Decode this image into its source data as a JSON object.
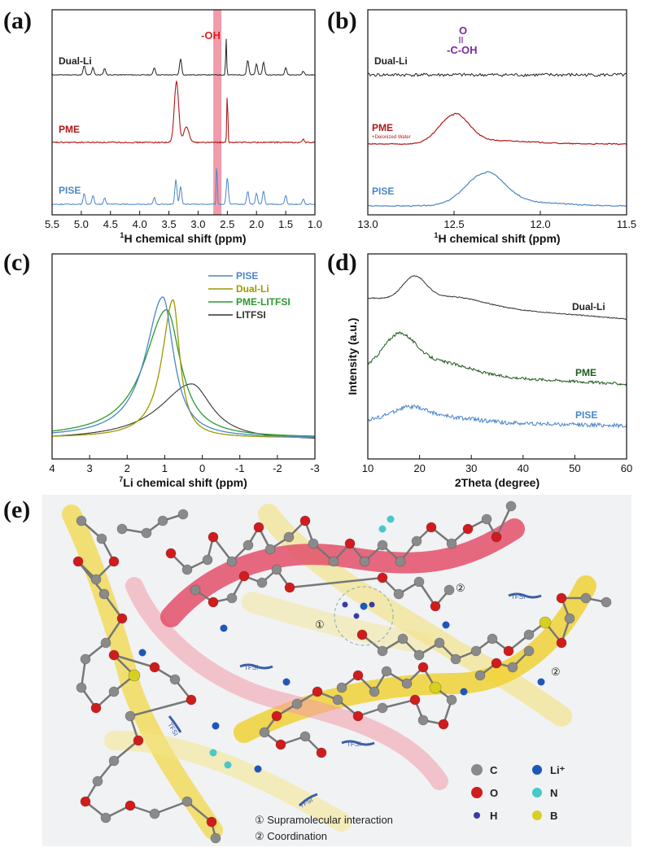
{
  "panel_labels": [
    "(a)",
    "(b)",
    "(c)",
    "(d)",
    "(e)"
  ],
  "colors": {
    "dual_li_a": "#222222",
    "pme_a": "#b01818",
    "pise_a": "#4a86c8",
    "highlight": "#f08a9c",
    "dual_li_c": "#9a9a00",
    "pme_litfsi_c": "#2a9a30",
    "litfsi_c": "#333333",
    "pme_d": "#1f5a1f",
    "cooh": "#7a2a9a"
  },
  "chart_data": [
    {
      "panel": "a",
      "type": "line",
      "title": "",
      "xlabel_sup": "1",
      "xlabel": "H chemical shift (ppm)",
      "xlim": [
        5.5,
        1.0
      ],
      "xticks": [
        "5.5",
        "5.0",
        "4.5",
        "4.0",
        "3.5",
        "3.0",
        "2.5",
        "2.0",
        "1.5",
        "1.0"
      ],
      "highlight_band": [
        2.74,
        2.6
      ],
      "annotation": "-OH",
      "series": [
        {
          "name": "Dual-Li",
          "peaks": [
            [
              4.95,
              0.25
            ],
            [
              4.8,
              0.2
            ],
            [
              4.6,
              0.18
            ],
            [
              3.75,
              0.2
            ],
            [
              3.3,
              0.45
            ],
            [
              2.52,
              1.0
            ],
            [
              2.15,
              0.4
            ],
            [
              2.0,
              0.3
            ],
            [
              1.88,
              0.35
            ],
            [
              1.5,
              0.2
            ],
            [
              1.2,
              0.1
            ]
          ]
        },
        {
          "name": "PME",
          "peaks": [
            [
              3.37,
              1.0
            ],
            [
              3.2,
              0.25
            ],
            [
              2.5,
              0.85
            ],
            [
              1.2,
              0.05
            ]
          ]
        },
        {
          "name": "PISE",
          "peaks": [
            [
              4.95,
              0.25
            ],
            [
              4.8,
              0.2
            ],
            [
              4.6,
              0.15
            ],
            [
              3.75,
              0.15
            ],
            [
              3.38,
              0.55
            ],
            [
              3.3,
              0.4
            ],
            [
              2.68,
              1.0
            ],
            [
              2.5,
              0.6
            ],
            [
              2.15,
              0.3
            ],
            [
              2.0,
              0.25
            ],
            [
              1.88,
              0.3
            ],
            [
              1.5,
              0.2
            ],
            [
              1.2,
              0.12
            ]
          ]
        }
      ]
    },
    {
      "panel": "b",
      "type": "line",
      "xlabel_sup": "1",
      "xlabel": "H chemical shift (ppm)",
      "xlim": [
        13.0,
        11.5
      ],
      "xticks": [
        "13.0",
        "12.5",
        "12.0",
        "11.5"
      ],
      "annotation_o": "O",
      "annotation_group": "-C-OH",
      "note": "+Deionized Water",
      "series": [
        {
          "name": "Dual-Li",
          "peak_center": null
        },
        {
          "name": "PME",
          "peak_center": 12.5
        },
        {
          "name": "PISE",
          "peak_center": 12.32
        }
      ]
    },
    {
      "panel": "c",
      "type": "line",
      "xlabel_sup": "7",
      "xlabel": "Li chemical shift (ppm)",
      "xlim": [
        4,
        -3
      ],
      "xticks": [
        "4",
        "3",
        "2",
        "1",
        "0",
        "-1",
        "-2",
        "-3"
      ],
      "legend_position": "top-right",
      "series": [
        {
          "name": "PISE",
          "peak": 1.05,
          "height": 1.0
        },
        {
          "name": "Dual-Li",
          "peak": 0.78,
          "height": 0.98
        },
        {
          "name": "PME-LITFSI",
          "peak": 0.95,
          "height": 0.91
        },
        {
          "name": "LITFSI",
          "peak": 0.28,
          "height": 0.4
        }
      ]
    },
    {
      "panel": "d",
      "type": "line",
      "xlabel": "2Theta (degree)",
      "ylabel": "Intensity (a.u.)",
      "xlim": [
        10,
        60
      ],
      "xticks": [
        "10",
        "20",
        "30",
        "40",
        "50",
        "60"
      ],
      "series": [
        {
          "name": "Dual-Li",
          "peak": 19
        },
        {
          "name": "PME",
          "peak": 16
        },
        {
          "name": "PISE",
          "peak": 18
        }
      ]
    }
  ],
  "panel_e": {
    "tfsi_label": "TFSI",
    "circle_labels": [
      "①",
      "②",
      "②"
    ],
    "legend": [
      {
        "symbol": "C",
        "color": "#8a8a8a"
      },
      {
        "symbol": "Li⁺",
        "color": "#1f57b8"
      },
      {
        "symbol": "O",
        "color": "#d01c1c"
      },
      {
        "symbol": "N",
        "color": "#48c8c8"
      },
      {
        "symbol": "H",
        "color": "#3a3aa8"
      },
      {
        "symbol": "B",
        "color": "#d8d020"
      }
    ],
    "notes": [
      "① Supramolecular interaction",
      "② Coordination"
    ]
  }
}
